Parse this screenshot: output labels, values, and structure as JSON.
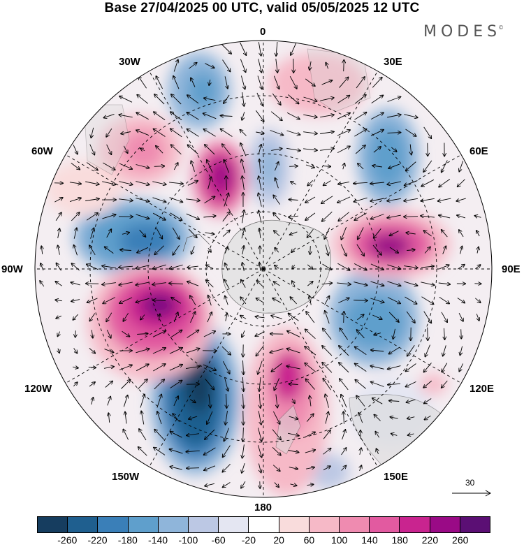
{
  "header": {
    "title": "Base 27/04/2025 00 UTC, valid 05/05/2025 12 UTC",
    "brand": "MODES"
  },
  "map": {
    "projection": "south polar stereographic",
    "longitude_labels": {
      "top": "0",
      "top_right": "30E",
      "right_upper": "60E",
      "right": "90E",
      "right_lower": "120E",
      "bottom_right": "150E",
      "bottom": "180",
      "bottom_left": "150W",
      "left_lower": "120W",
      "left": "90W",
      "left_upper": "60W",
      "top_left": "30W"
    },
    "reference_vector": {
      "label": "30"
    },
    "colors": {
      "negative_strong": "#1f4e79",
      "positive_strong": "#8e0f7c",
      "land": "#d9d9d9"
    }
  },
  "colorbar": {
    "colors": [
      "#163d5f",
      "#1f5f8f",
      "#3a7fb8",
      "#5f9fcc",
      "#8fb5da",
      "#bcc8e4",
      "#e4e6f2",
      "#ffffff",
      "#f9dcdc",
      "#f6b9c7",
      "#ef8bb0",
      "#e25aa0",
      "#c9248f",
      "#9a0a86",
      "#5b0f74"
    ],
    "ticks": [
      "-260",
      "-220",
      "-180",
      "-140",
      "-100",
      "-60",
      "-20",
      "20",
      "60",
      "100",
      "140",
      "180",
      "220",
      "260"
    ]
  }
}
